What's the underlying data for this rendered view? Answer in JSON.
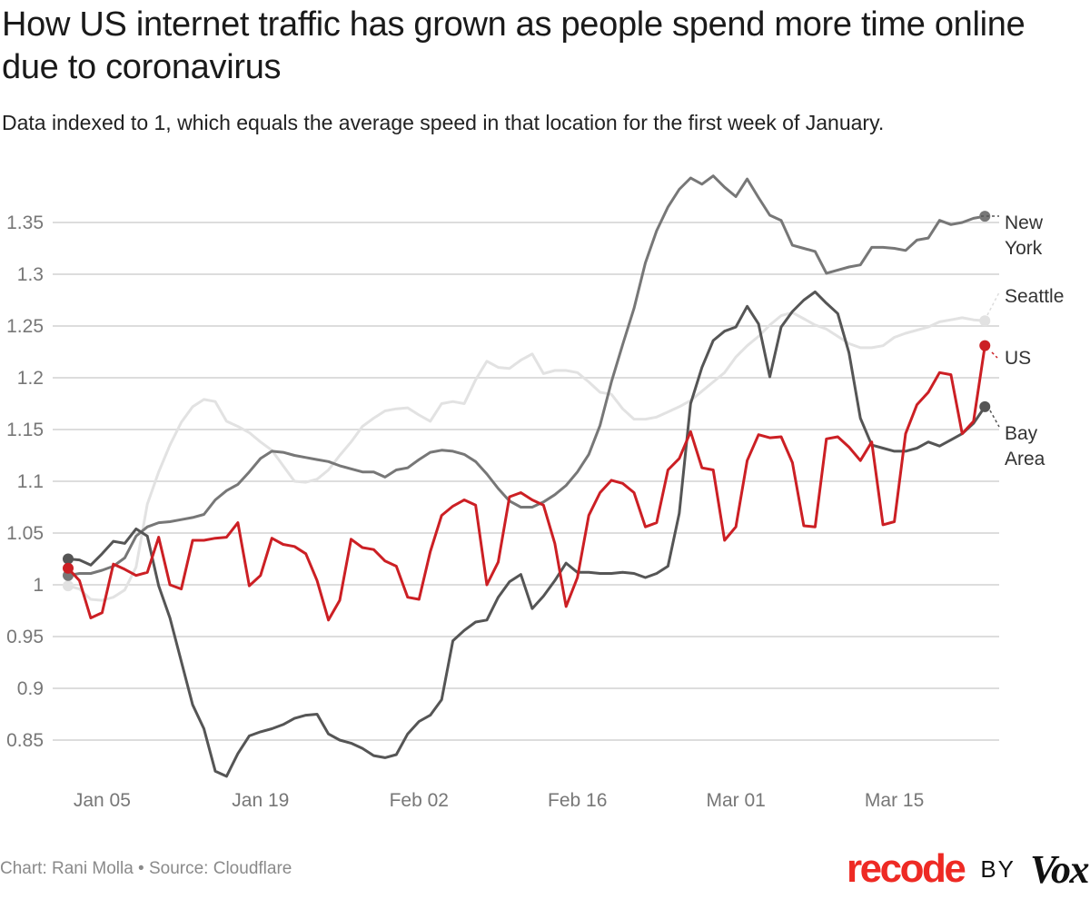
{
  "header": {
    "title": "How US internet traffic has grown as people spend more time online due to coronavirus",
    "subtitle": "Data indexed to 1, which equals the average speed in that location for the first week of January."
  },
  "footer": {
    "credit": "Chart: Rani Molla • Source: Cloudflare",
    "brand_primary": "recode",
    "brand_by": "BY",
    "brand_secondary": "Vox",
    "brand_color": "#ee2a24"
  },
  "chart_data": {
    "type": "line",
    "title": "How US internet traffic has grown as people spend more time online due to coronavirus",
    "subtitle": "Data indexed to 1, which equals the average speed in that location for the first week of January.",
    "xlabel": "",
    "ylabel": "",
    "x_start": "Jan 02",
    "x_end": "Mar 23",
    "x_step": "1 day",
    "x_ticks": [
      {
        "label": "Jan 05",
        "index": 3
      },
      {
        "label": "Jan 19",
        "index": 17
      },
      {
        "label": "Feb 02",
        "index": 31
      },
      {
        "label": "Feb 16",
        "index": 45
      },
      {
        "label": "Mar 01",
        "index": 59
      },
      {
        "label": "Mar 15",
        "index": 73
      }
    ],
    "y_ticks": [
      "0.85",
      "0.9",
      "0.95",
      "1",
      "1.05",
      "1.1",
      "1.15",
      "1.2",
      "1.25",
      "1.3",
      "1.35"
    ],
    "ylim": [
      0.8,
      1.4
    ],
    "grid": true,
    "legend": "direct labels at right end of each line",
    "series": [
      {
        "name": "New York",
        "label_lines": [
          "New",
          "York"
        ],
        "color": "#777777",
        "values": [
          1.009,
          1.011,
          1.011,
          1.014,
          1.018,
          1.026,
          1.047,
          1.056,
          1.06,
          1.061,
          1.063,
          1.065,
          1.068,
          1.082,
          1.091,
          1.097,
          1.109,
          1.122,
          1.129,
          1.128,
          1.125,
          1.123,
          1.121,
          1.119,
          1.115,
          1.112,
          1.109,
          1.109,
          1.104,
          1.111,
          1.113,
          1.121,
          1.128,
          1.13,
          1.129,
          1.126,
          1.119,
          1.107,
          1.093,
          1.081,
          1.075,
          1.075,
          1.08,
          1.087,
          1.096,
          1.109,
          1.126,
          1.154,
          1.196,
          1.232,
          1.267,
          1.311,
          1.342,
          1.365,
          1.382,
          1.393,
          1.387,
          1.395,
          1.384,
          1.375,
          1.392,
          1.374,
          1.357,
          1.352,
          1.328,
          1.325,
          1.322,
          1.301,
          1.304,
          1.307,
          1.309,
          1.326,
          1.326,
          1.325,
          1.323,
          1.333,
          1.335,
          1.352,
          1.348,
          1.35,
          1.354,
          1.356
        ]
      },
      {
        "name": "Seattle",
        "label_lines": [
          "Seattle"
        ],
        "color": "#e2e2e2",
        "values": [
          0.999,
          0.996,
          0.986,
          0.985,
          0.988,
          0.995,
          1.017,
          1.078,
          1.109,
          1.135,
          1.157,
          1.172,
          1.179,
          1.177,
          1.158,
          1.153,
          1.147,
          1.138,
          1.13,
          1.115,
          1.1,
          1.099,
          1.102,
          1.111,
          1.125,
          1.138,
          1.153,
          1.161,
          1.168,
          1.17,
          1.171,
          1.164,
          1.158,
          1.175,
          1.177,
          1.175,
          1.198,
          1.216,
          1.21,
          1.209,
          1.217,
          1.223,
          1.204,
          1.207,
          1.207,
          1.205,
          1.196,
          1.186,
          1.184,
          1.17,
          1.16,
          1.16,
          1.162,
          1.167,
          1.172,
          1.178,
          1.187,
          1.196,
          1.205,
          1.22,
          1.231,
          1.24,
          1.251,
          1.26,
          1.263,
          1.257,
          1.251,
          1.247,
          1.24,
          1.233,
          1.229,
          1.229,
          1.231,
          1.239,
          1.243,
          1.246,
          1.249,
          1.254,
          1.256,
          1.258,
          1.256,
          1.255
        ]
      },
      {
        "name": "US",
        "label_lines": [
          "US"
        ],
        "color": "#cc1f24",
        "values": [
          1.016,
          1.004,
          0.968,
          0.973,
          1.02,
          1.015,
          1.009,
          1.012,
          1.046,
          1.0,
          0.996,
          1.043,
          1.043,
          1.045,
          1.046,
          1.06,
          0.999,
          1.009,
          1.045,
          1.039,
          1.037,
          1.03,
          1.004,
          0.966,
          0.985,
          1.044,
          1.036,
          1.034,
          1.023,
          1.018,
          0.988,
          0.986,
          1.032,
          1.067,
          1.076,
          1.082,
          1.077,
          1.0,
          1.022,
          1.085,
          1.089,
          1.082,
          1.077,
          1.04,
          0.979,
          1.007,
          1.067,
          1.089,
          1.101,
          1.098,
          1.089,
          1.056,
          1.06,
          1.111,
          1.122,
          1.148,
          1.113,
          1.111,
          1.043,
          1.056,
          1.12,
          1.145,
          1.142,
          1.143,
          1.118,
          1.057,
          1.056,
          1.141,
          1.143,
          1.133,
          1.12,
          1.138,
          1.058,
          1.061,
          1.146,
          1.174,
          1.186,
          1.205,
          1.203,
          1.146,
          1.158,
          1.231
        ]
      },
      {
        "name": "Bay Area",
        "label_lines": [
          "Bay",
          "Area"
        ],
        "color": "#555555",
        "values": [
          1.025,
          1.024,
          1.019,
          1.03,
          1.042,
          1.04,
          1.054,
          1.047,
          0.999,
          0.968,
          0.926,
          0.884,
          0.861,
          0.82,
          0.815,
          0.837,
          0.854,
          0.858,
          0.861,
          0.865,
          0.871,
          0.874,
          0.875,
          0.856,
          0.85,
          0.847,
          0.842,
          0.835,
          0.833,
          0.836,
          0.856,
          0.868,
          0.874,
          0.889,
          0.946,
          0.956,
          0.964,
          0.966,
          0.988,
          1.003,
          1.01,
          0.977,
          0.989,
          1.004,
          1.021,
          1.012,
          1.012,
          1.011,
          1.011,
          1.012,
          1.011,
          1.007,
          1.011,
          1.018,
          1.069,
          1.175,
          1.21,
          1.236,
          1.245,
          1.249,
          1.269,
          1.252,
          1.201,
          1.249,
          1.264,
          1.275,
          1.283,
          1.272,
          1.262,
          1.224,
          1.161,
          1.135,
          1.132,
          1.129,
          1.129,
          1.132,
          1.138,
          1.134,
          1.14,
          1.146,
          1.156,
          1.172
        ]
      }
    ]
  }
}
